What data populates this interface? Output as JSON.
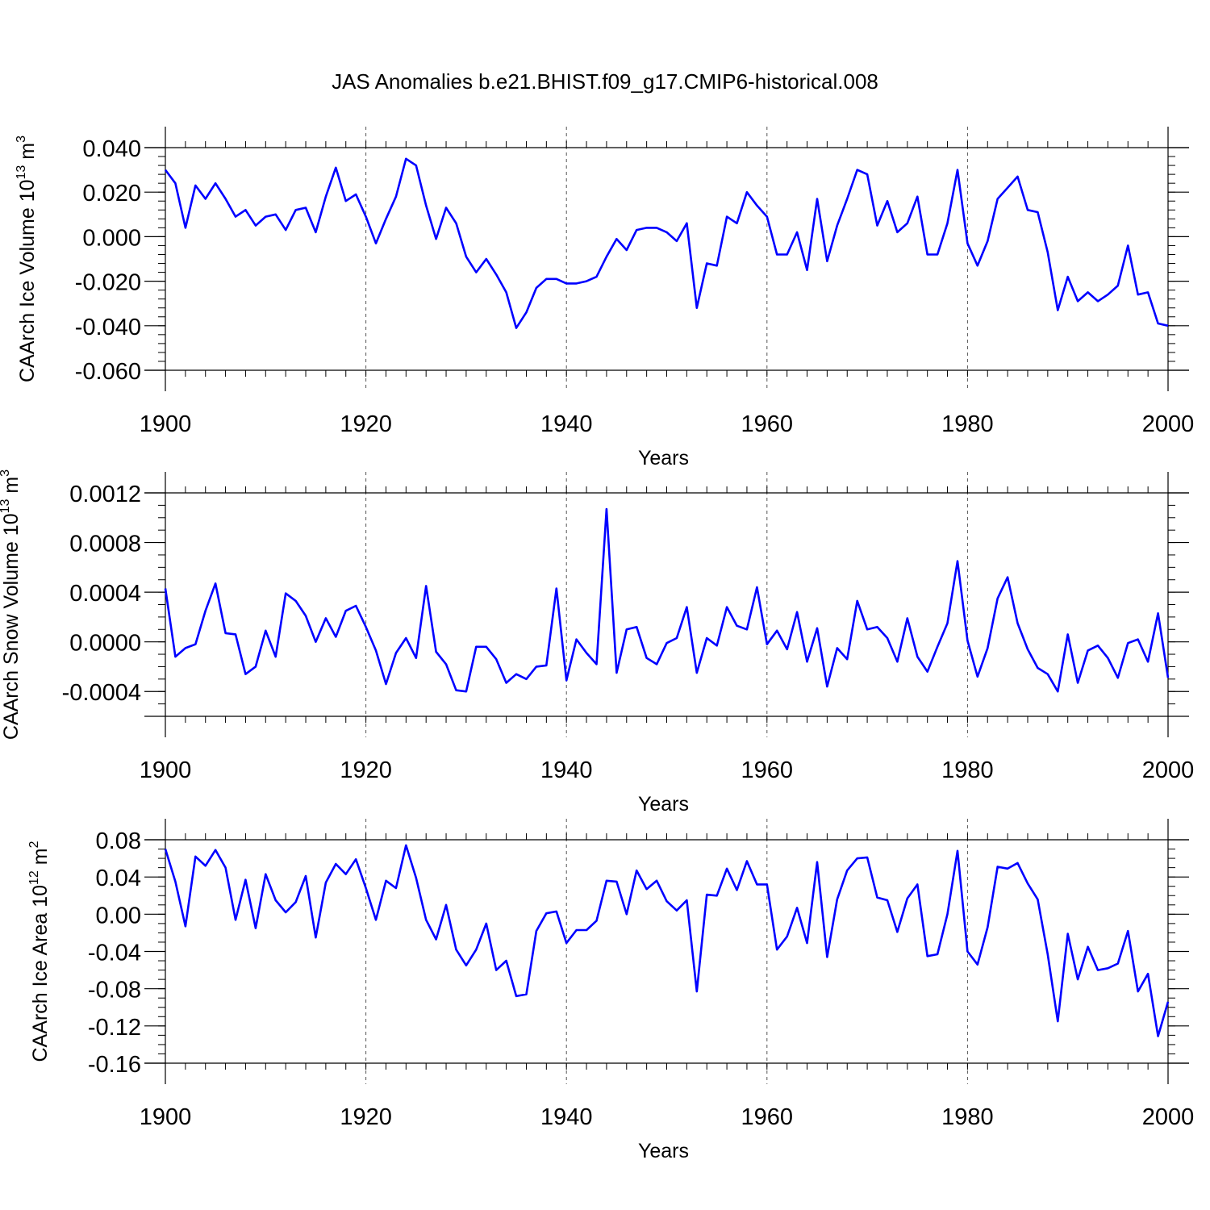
{
  "title": "JAS Anomalies b.e21.BHIST.f09_g17.CMIP6-historical.008",
  "colors": {
    "line": "#0000ff",
    "axis": "#000000",
    "grid": "#555555",
    "background": "#ffffff"
  },
  "chart_data": [
    {
      "type": "line",
      "title": "",
      "xlabel": "Years",
      "ylabel": {
        "text": "CAArch Ice Volume 10",
        "exponent": "13",
        "unit": " m",
        "unit_exponent": "3"
      },
      "xlim": [
        1900,
        2000
      ],
      "ylim": [
        -0.06,
        0.04
      ],
      "x_ticks": [
        1900,
        1920,
        1940,
        1960,
        1980,
        2000
      ],
      "x_tick_labels": [
        "1900",
        "1920",
        "1940",
        "1960",
        "1980",
        "2000"
      ],
      "y_ticks": [
        -0.06,
        -0.04,
        -0.02,
        0.0,
        0.02,
        0.04
      ],
      "y_tick_labels": [
        "-0.060",
        "-0.040",
        "-0.020",
        "0.000",
        "0.020",
        "0.040"
      ],
      "grid": "dashed vertical lines at major x ticks",
      "x_start": 1900,
      "series": [
        {
          "values": [
            0.03,
            0.024,
            0.004,
            0.023,
            0.017,
            0.024,
            0.017,
            0.009,
            0.012,
            0.005,
            0.009,
            0.01,
            0.003,
            0.012,
            0.013,
            0.002,
            0.018,
            0.031,
            0.016,
            0.019,
            0.009,
            -0.003,
            0.008,
            0.018,
            0.035,
            0.032,
            0.014,
            -0.001,
            0.013,
            0.006,
            -0.009,
            -0.016,
            -0.01,
            -0.017,
            -0.025,
            -0.041,
            -0.034,
            -0.023,
            -0.019,
            -0.019,
            -0.021,
            -0.021,
            -0.02,
            -0.018,
            -0.009,
            -0.001,
            -0.006,
            0.003,
            0.004,
            0.004,
            0.002,
            -0.002,
            0.006,
            -0.032,
            -0.012,
            -0.013,
            0.009,
            0.006,
            0.02,
            0.014,
            0.009,
            -0.008,
            -0.008,
            0.002,
            -0.015,
            0.017,
            -0.011,
            0.005,
            0.017,
            0.03,
            0.028,
            0.005,
            0.016,
            0.002,
            0.006,
            0.018,
            -0.008,
            -0.008,
            0.006,
            0.03,
            -0.003,
            -0.013,
            -0.002,
            0.017,
            0.022,
            0.027,
            0.012,
            0.011,
            -0.007,
            -0.033,
            -0.018,
            -0.029,
            -0.025,
            -0.029,
            -0.026,
            -0.022,
            -0.004,
            -0.026,
            -0.025,
            -0.039,
            -0.04
          ]
        }
      ]
    },
    {
      "type": "line",
      "title": "",
      "xlabel": "Years",
      "ylabel": {
        "text": "CAArch Snow Volume 10",
        "exponent": "13",
        "unit": " m",
        "unit_exponent": "3"
      },
      "xlim": [
        1900,
        2000
      ],
      "ylim": [
        -0.0006,
        0.0012
      ],
      "x_ticks": [
        1900,
        1920,
        1940,
        1960,
        1980,
        2000
      ],
      "x_tick_labels": [
        "1900",
        "1920",
        "1940",
        "1960",
        "1980",
        "2000"
      ],
      "y_ticks": [
        -0.0004,
        0.0,
        0.0004,
        0.0008,
        0.0012
      ],
      "y_tick_labels": [
        "-0.0004",
        "0.0000",
        "0.0004",
        "0.0008",
        "0.0012"
      ],
      "grid": "dashed vertical lines at major x ticks",
      "x_start": 1900,
      "series": [
        {
          "values": [
            0.00043,
            -0.00012,
            -5e-05,
            -2e-05,
            0.00025,
            0.00047,
            7e-05,
            6e-05,
            -0.00026,
            -0.0002,
            9e-05,
            -0.00012,
            0.00039,
            0.00033,
            0.00021,
            0.0,
            0.00019,
            4e-05,
            0.00025,
            0.00029,
            0.00012,
            -7e-05,
            -0.00034,
            -9e-05,
            3e-05,
            -0.00013,
            0.00045,
            -8e-05,
            -0.00018,
            -0.00039,
            -0.0004,
            -4e-05,
            -4e-05,
            -0.00014,
            -0.00033,
            -0.00026,
            -0.0003,
            -0.0002,
            -0.00019,
            0.00043,
            -0.00031,
            2e-05,
            -9e-05,
            -0.00018,
            0.00107,
            -0.00025,
            0.0001,
            0.00012,
            -0.00013,
            -0.00018,
            -1e-05,
            3e-05,
            0.00028,
            -0.00025,
            3e-05,
            -3e-05,
            0.00028,
            0.00013,
            0.0001,
            0.00044,
            -2e-05,
            9e-05,
            -6e-05,
            0.00024,
            -0.00016,
            0.00011,
            -0.00036,
            -5e-05,
            -0.00014,
            0.00033,
            0.0001,
            0.00012,
            3e-05,
            -0.00016,
            0.00019,
            -0.00012,
            -0.00024,
            -4e-05,
            0.00015,
            0.00065,
            1e-05,
            -0.00028,
            -5e-05,
            0.00035,
            0.00052,
            0.00015,
            -6e-05,
            -0.00021,
            -0.00026,
            -0.0004,
            6e-05,
            -0.00033,
            -7e-05,
            -3e-05,
            -0.00013,
            -0.00029,
            -1e-05,
            2e-05,
            -0.00016,
            0.00023,
            -0.00029
          ]
        }
      ]
    },
    {
      "type": "line",
      "title": "",
      "xlabel": "Years",
      "ylabel": {
        "text": "CAArch Ice Area 10",
        "exponent": "12",
        "unit": " m",
        "unit_exponent": "2"
      },
      "xlim": [
        1900,
        2000
      ],
      "ylim": [
        -0.16,
        0.08
      ],
      "x_ticks": [
        1900,
        1920,
        1940,
        1960,
        1980,
        2000
      ],
      "x_tick_labels": [
        "1900",
        "1920",
        "1940",
        "1960",
        "1980",
        "2000"
      ],
      "y_ticks": [
        -0.16,
        -0.12,
        -0.08,
        -0.04,
        0.0,
        0.04,
        0.08
      ],
      "y_tick_labels": [
        "-0.16",
        "-0.12",
        "-0.08",
        "-0.04",
        "0.00",
        "0.04",
        "0.08"
      ],
      "grid": "dashed vertical lines at major x ticks",
      "x_start": 1900,
      "series": [
        {
          "values": [
            0.07,
            0.035,
            -0.013,
            0.062,
            0.052,
            0.069,
            0.05,
            -0.006,
            0.037,
            -0.015,
            0.043,
            0.015,
            0.002,
            0.013,
            0.041,
            -0.025,
            0.034,
            0.054,
            0.043,
            0.059,
            0.028,
            -0.006,
            0.036,
            0.028,
            0.074,
            0.039,
            -0.006,
            -0.027,
            0.01,
            -0.038,
            -0.055,
            -0.038,
            -0.01,
            -0.06,
            -0.05,
            -0.088,
            -0.086,
            -0.018,
            0.001,
            0.003,
            -0.031,
            -0.017,
            -0.017,
            -0.007,
            0.036,
            0.035,
            0.0,
            0.047,
            0.027,
            0.036,
            0.014,
            0.004,
            0.015,
            -0.083,
            0.021,
            0.02,
            0.049,
            0.026,
            0.057,
            0.032,
            0.032,
            -0.038,
            -0.024,
            0.007,
            -0.031,
            0.056,
            -0.046,
            0.016,
            0.047,
            0.06,
            0.061,
            0.018,
            0.015,
            -0.019,
            0.017,
            0.032,
            -0.045,
            -0.043,
            0.0,
            0.068,
            -0.04,
            -0.054,
            -0.014,
            0.051,
            0.049,
            0.055,
            0.033,
            0.016,
            -0.043,
            -0.115,
            -0.021,
            -0.07,
            -0.035,
            -0.06,
            -0.058,
            -0.053,
            -0.018,
            -0.083,
            -0.064,
            -0.131,
            -0.094
          ]
        }
      ]
    }
  ]
}
